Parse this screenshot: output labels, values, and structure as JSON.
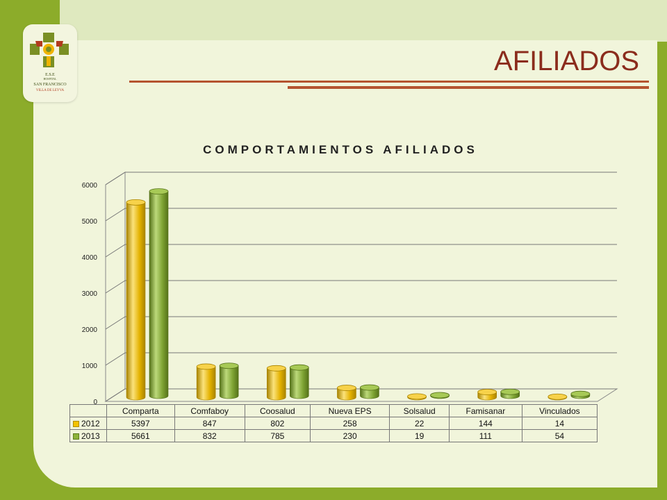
{
  "slide": {
    "title": "AFILIADOS",
    "logo": {
      "line1": "E.S.E",
      "line2": "HOSPITAL",
      "line3": "SAN FRANCISCO",
      "line4": "VILLA DE LEYVA"
    }
  },
  "colors": {
    "series_2012": "#f2c200",
    "series_2013": "#8db33a",
    "title": "#8b2c1c",
    "background": "#8cac2a"
  },
  "chart_data": {
    "type": "bar",
    "title": "COMPORTAMIENTOS AFILIADOS",
    "categories": [
      "Comparta",
      "Comfaboy",
      "Coosalud",
      "Nueva EPS",
      "Solsalud",
      "Famisanar",
      "Vinculados"
    ],
    "series": [
      {
        "name": "2012",
        "values": [
          5397,
          847,
          802,
          258,
          22,
          144,
          14
        ]
      },
      {
        "name": "2013",
        "values": [
          5661,
          832,
          785,
          230,
          19,
          111,
          54
        ]
      }
    ],
    "yticks": [
      "0",
      "1000",
      "2000",
      "3000",
      "4000",
      "5000",
      "6000"
    ],
    "ylim": [
      0,
      6000
    ],
    "grid": true,
    "legend": "data-table-below"
  }
}
